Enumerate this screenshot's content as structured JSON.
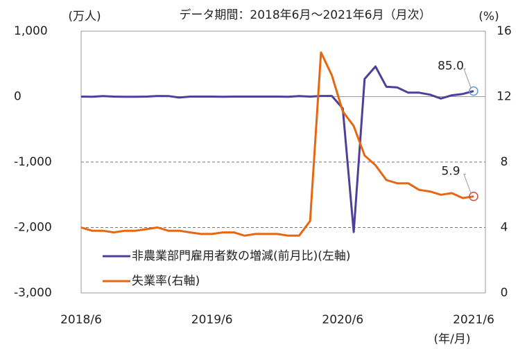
{
  "chart_data": {
    "type": "line",
    "title": "データ期間：2018年6月～2021年6月（月次）",
    "ylabel": "(万人)",
    "y2label": "(%)",
    "xlabel": "(年/月)",
    "categories": [
      "2018/6",
      null,
      null,
      null,
      null,
      null,
      null,
      null,
      null,
      null,
      null,
      null,
      "2019/6",
      null,
      null,
      null,
      null,
      null,
      null,
      null,
      null,
      null,
      null,
      null,
      "2020/6",
      null,
      null,
      null,
      null,
      null,
      null,
      null,
      null,
      null,
      null,
      null,
      "2021/6"
    ],
    "series": [
      {
        "name": "非農業部門雇用者数の増減(前月比)(左軸)",
        "color": "#4f3f9a",
        "axis": "y",
        "values": [
          0,
          -2,
          8,
          0,
          -2,
          -2,
          0,
          10,
          8,
          -15,
          0,
          0,
          0,
          -2,
          0,
          0,
          0,
          0,
          0,
          -2,
          8,
          0,
          10,
          10,
          -180,
          -2070,
          270,
          460,
          150,
          140,
          60,
          60,
          30,
          -30,
          20,
          40,
          85
        ],
        "value_labels": [
          null,
          null,
          null,
          null,
          null,
          null,
          null,
          null,
          null,
          null,
          null,
          null,
          null,
          null,
          null,
          null,
          null,
          null,
          null,
          null,
          null,
          null,
          null,
          null,
          null,
          null,
          null,
          null,
          null,
          null,
          null,
          null,
          null,
          null,
          null,
          null,
          "85.0"
        ]
      },
      {
        "name": "失業率(右軸)",
        "color": "#e8660f",
        "axis": "y2",
        "values": [
          4.0,
          3.8,
          3.8,
          3.7,
          3.8,
          3.8,
          3.9,
          4.0,
          3.8,
          3.8,
          3.7,
          3.6,
          3.6,
          3.7,
          3.7,
          3.5,
          3.6,
          3.6,
          3.6,
          3.5,
          3.5,
          4.4,
          14.7,
          13.3,
          11.1,
          10.2,
          8.4,
          7.8,
          6.9,
          6.7,
          6.7,
          6.3,
          6.2,
          6.0,
          6.1,
          5.8,
          5.9
        ]
      }
    ],
    "ylim": [
      -3000,
      1000
    ],
    "yticks": [
      {
        "value": -3000,
        "label": "-3,000"
      },
      {
        "value": -2000,
        "label": "-2,000"
      },
      {
        "value": -1000,
        "label": "-1,000"
      },
      0,
      {
        "value": 1000,
        "label": "1,000"
      }
    ],
    "y2lim": [
      0,
      16
    ],
    "y2ticks": [
      0,
      4,
      8,
      12,
      16
    ],
    "legend": "lower left",
    "negative_tick_color": "#e02020"
  }
}
